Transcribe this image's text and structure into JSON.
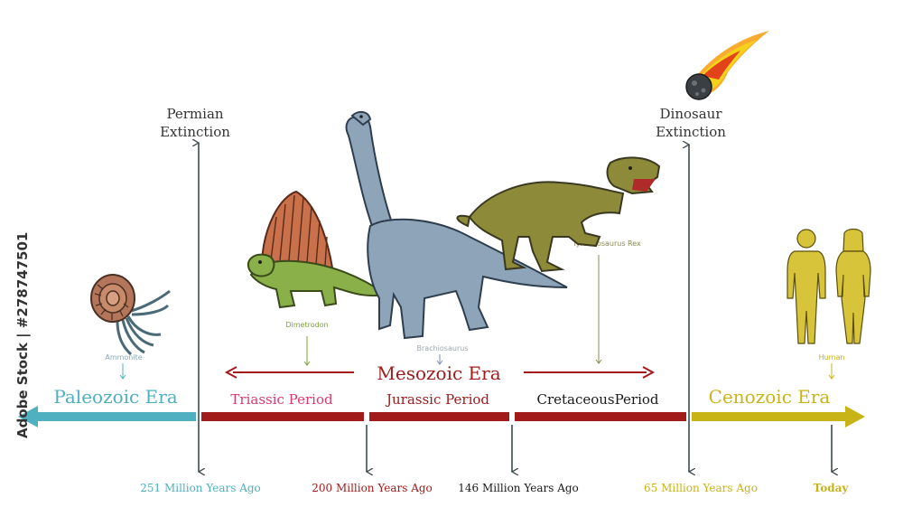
{
  "events": {
    "permian": {
      "line1": "Permian",
      "line2": "Extinction"
    },
    "dinosaur": {
      "line1": "Dinosaur",
      "line2": "Extinction"
    }
  },
  "eras": {
    "paleozoic": "Paleozoic Era",
    "mesozoic": "Mesozoic Era",
    "cenozoic": "Cenozoic Era"
  },
  "periods": {
    "triassic": "Triassic Period",
    "jurassic": "Jurassic Period",
    "cretaceous": "CretaceousPeriod"
  },
  "times": {
    "t251": "251 Million Years Ago",
    "t200": "200 Million Years Ago",
    "t146": "146 Million Years Ago",
    "t65": "65 Million Years Ago",
    "today": "Today"
  },
  "creatures": {
    "ammonite": "Ammonite",
    "dimetrodon": "Dimetrodon",
    "brachiosaurus": "Brachiosaurus",
    "trex": "Tyrannosaurus Rex",
    "human": "Human"
  },
  "watermark": {
    "side_text": "Adobe Stock | #278747501"
  },
  "colors": {
    "paleozoic": "#4fb0c0",
    "mesozoic": "#a11b1b",
    "triassic": "#d8396e",
    "cenozoic": "#c9b418",
    "cretaceous": "#1a1a1a",
    "line": "#3f4a4f"
  }
}
